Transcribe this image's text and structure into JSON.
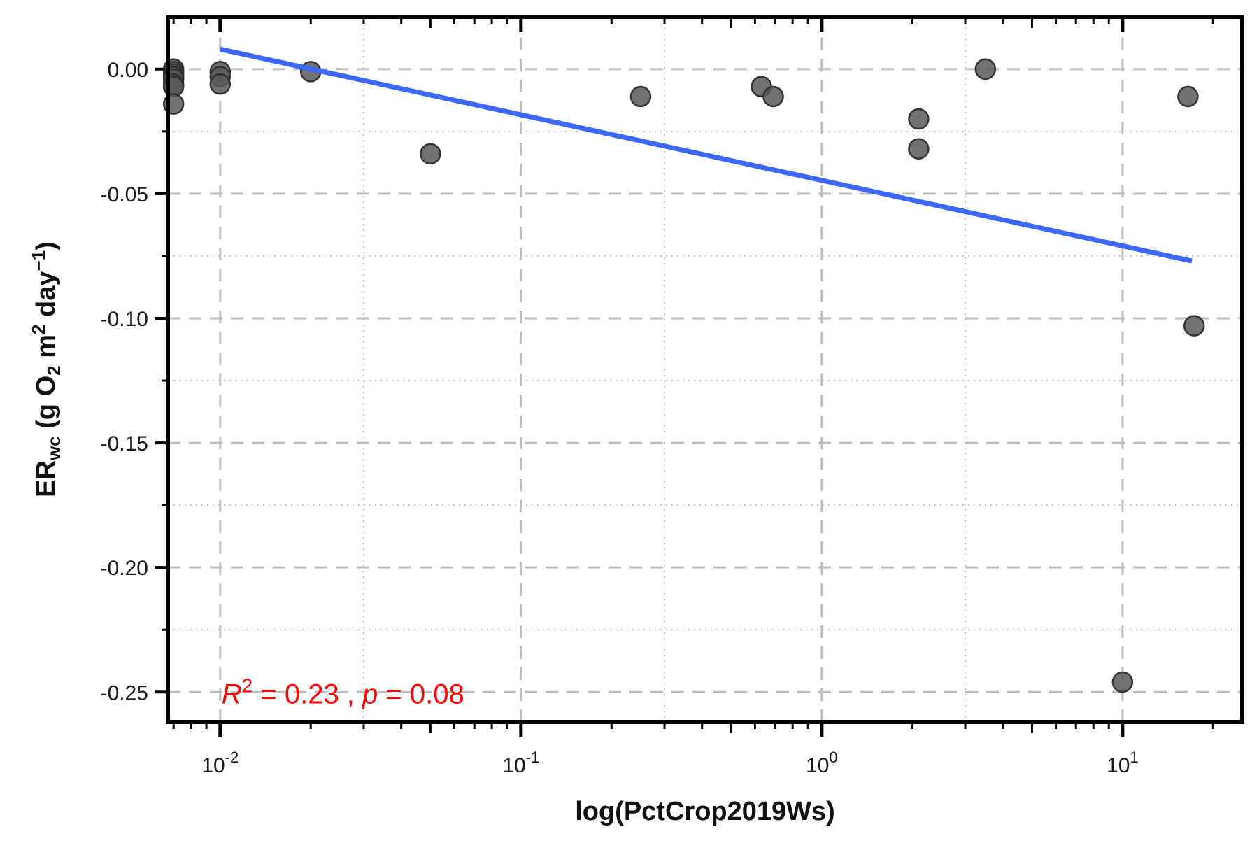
{
  "chart_data": {
    "type": "scatter",
    "xlabel": "log(PctCrop2019Ws)",
    "ylabel": {
      "main": "ER",
      "sub": "wc",
      "paren_open": " (g O",
      "o2_sub": "2",
      "m": " m",
      "m_sup": "2",
      "day": " day",
      "day_sup": "−1",
      "paren_close": ")"
    },
    "x_scale": "log",
    "xlim": [
      0.0067,
      25
    ],
    "ylim": [
      -0.262,
      0.021
    ],
    "x_ticks": [
      {
        "value": 0.01,
        "base": "10",
        "exp": "-2"
      },
      {
        "value": 0.1,
        "base": "10",
        "exp": "-1"
      },
      {
        "value": 1,
        "base": "10",
        "exp": "0"
      },
      {
        "value": 10,
        "base": "10",
        "exp": "1"
      }
    ],
    "y_ticks": [
      {
        "value": 0.0,
        "label": "0.00"
      },
      {
        "value": -0.05,
        "label": "-0.05"
      },
      {
        "value": -0.1,
        "label": "-0.10"
      },
      {
        "value": -0.15,
        "label": "-0.15"
      },
      {
        "value": -0.2,
        "label": "-0.20"
      },
      {
        "value": -0.25,
        "label": "-0.25"
      }
    ],
    "grid": true,
    "series": [
      {
        "points": [
          {
            "x": 0.007,
            "y": 0.0
          },
          {
            "x": 0.007,
            "y": -0.001
          },
          {
            "x": 0.007,
            "y": -0.002
          },
          {
            "x": 0.007,
            "y": -0.003
          },
          {
            "x": 0.007,
            "y": -0.004
          },
          {
            "x": 0.007,
            "y": -0.006
          },
          {
            "x": 0.007,
            "y": -0.007
          },
          {
            "x": 0.007,
            "y": -0.014
          },
          {
            "x": 0.01,
            "y": -0.001
          },
          {
            "x": 0.01,
            "y": -0.003
          },
          {
            "x": 0.01,
            "y": -0.006
          },
          {
            "x": 0.02,
            "y": -0.001
          },
          {
            "x": 0.05,
            "y": -0.034
          },
          {
            "x": 0.25,
            "y": -0.011
          },
          {
            "x": 0.63,
            "y": -0.007
          },
          {
            "x": 0.69,
            "y": -0.011
          },
          {
            "x": 2.1,
            "y": -0.02
          },
          {
            "x": 2.1,
            "y": -0.032
          },
          {
            "x": 3.5,
            "y": 0.0
          },
          {
            "x": 10.0,
            "y": -0.246
          },
          {
            "x": 16.5,
            "y": -0.011
          },
          {
            "x": 17.3,
            "y": -0.103
          }
        ]
      }
    ],
    "fit_line": {
      "x": [
        0.01,
        17.0
      ],
      "y": [
        0.008,
        -0.077
      ],
      "color": "#3d67ff"
    },
    "annotation": {
      "r2_label": "R",
      "r2_sup": "2",
      "r2_value": " = 0.23 , ",
      "p_label": "p",
      "p_value": " = 0.08",
      "color": "#ff0000"
    },
    "point_color": "#595959"
  }
}
